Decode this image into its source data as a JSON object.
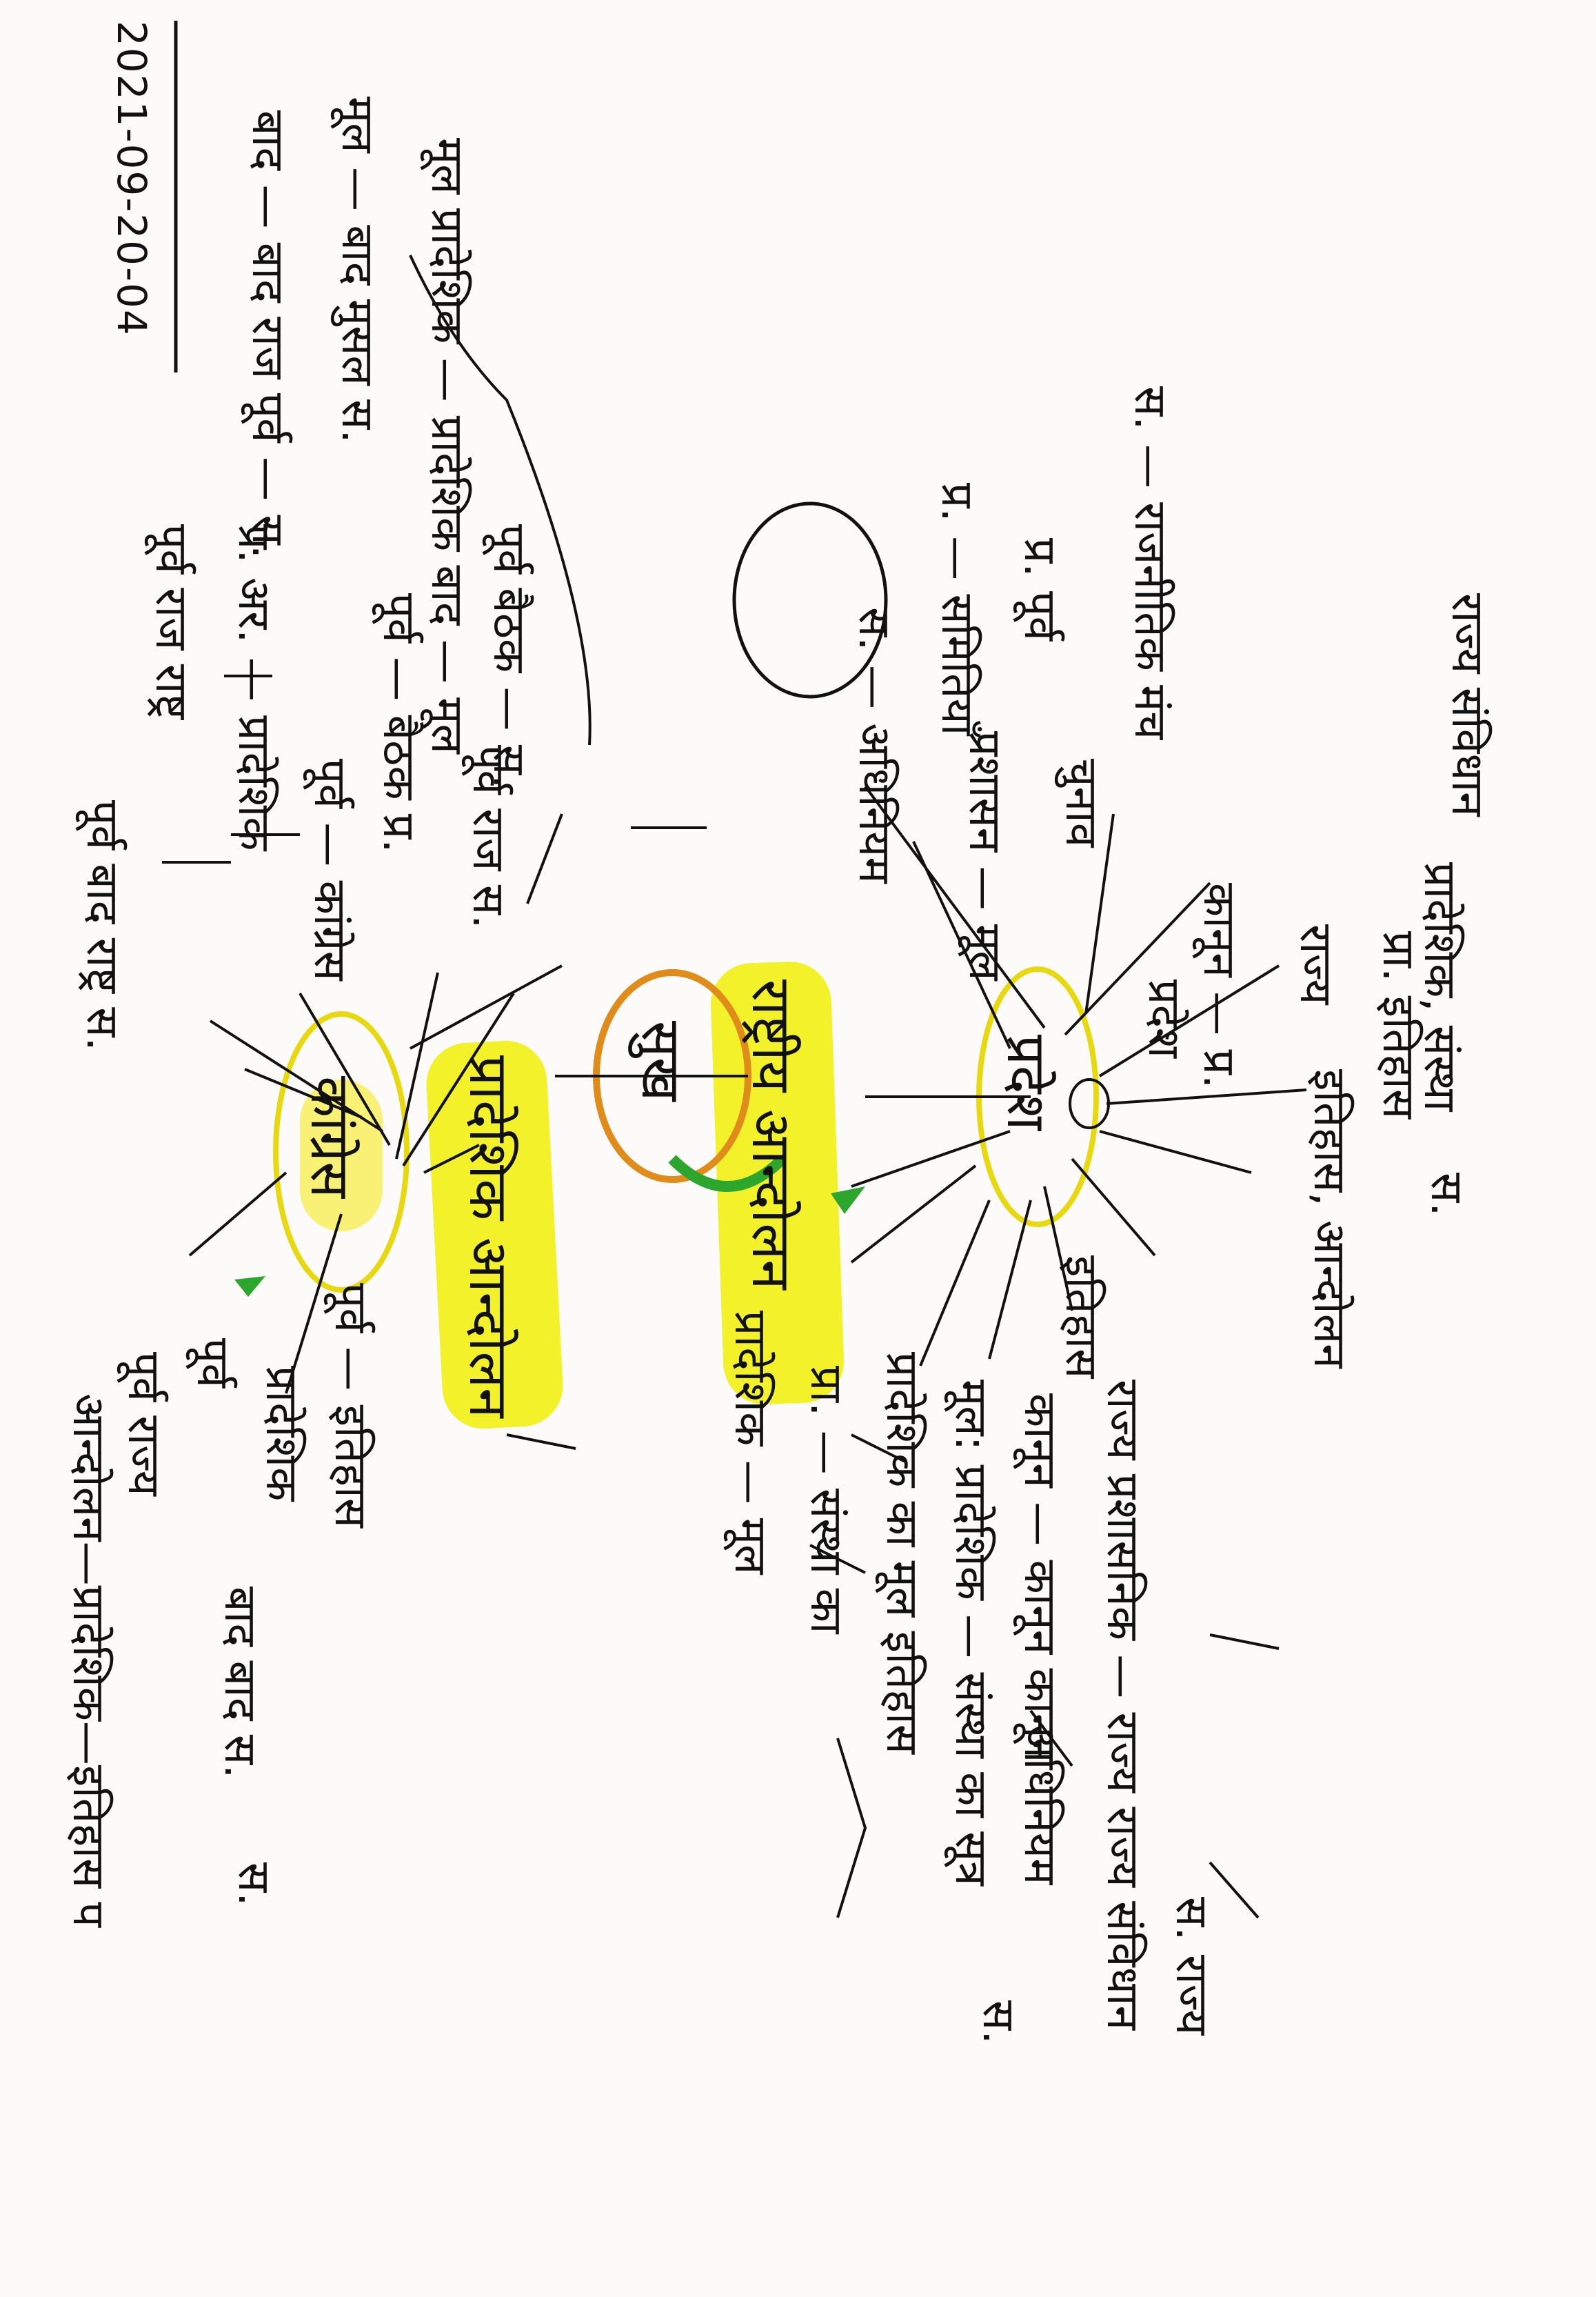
{
  "note": {
    "date": "2021-09-20-04",
    "center": {
      "main_node": "सुख",
      "left_hub": "राष्ट्रीय आन्दोलन",
      "right_hub": "प्रादेशिक आन्दोलन",
      "top_hub": "प्रदेश",
      "bottom_hub": "कांग्रेस"
    },
    "top_branch": [
      {
        "label": "पूर्व बाद राष्ट्र स."
      },
      {
        "label": "पूर्व राज राष्ट्र"
      },
      {
        "label": "प्र. अर. — प्रादेशिक"
      },
      {
        "label": "पूर्व — कांग्रेस"
      },
      {
        "label": "पूर्व — बैठक प्र."
      },
      {
        "label": "पूर्व राज स."
      },
      {
        "label": "बाद — बाद राज पूर्व — स."
      },
      {
        "label": "मूल — बाद मुसल स."
      },
      {
        "label": "मूल प्रादेशिक — प्रादेशिक बाद — मूल"
      },
      {
        "label": "पूर्व बैठक — स."
      }
    ],
    "left_branch": [
      {
        "label": "इतिहास"
      },
      {
        "label": "प्रदेश"
      },
      {
        "label": "स. — अधिनियम"
      },
      {
        "label": "चुनाव"
      },
      {
        "label": "कानून — प्र."
      },
      {
        "label": "प्रशासन — मूल"
      },
      {
        "label": "प्र. — समितियाँ"
      },
      {
        "label": "प्र. पूर्व"
      },
      {
        "label": "स. — राजनीतिक मंच"
      },
      {
        "label": "राज्य"
      },
      {
        "label": "राज्य संविधान"
      },
      {
        "label": "प्रादेशिक, संस्था"
      },
      {
        "label": "इतिहास, आन्दोलन"
      },
      {
        "label": "प्रा. इतिहास"
      },
      {
        "label": "स."
      }
    ],
    "right_branch": [
      {
        "label": "पूर्व राज्य"
      },
      {
        "label": "पूर्व"
      },
      {
        "label": "आन्दोलन—प्रादेशिक—इतिहास प"
      },
      {
        "label": "प्रादेशिक"
      },
      {
        "label": "पूर्व — इतिहास"
      },
      {
        "label": "बाद बाद स."
      },
      {
        "label": "स."
      }
    ],
    "bottom_branch": [
      {
        "label": "प्रादेशिक — मूल"
      },
      {
        "label": "प्रा. — संस्था का"
      },
      {
        "label": "प्रादेशिक का मूल इतिहास"
      },
      {
        "label": "मूल: प्रादेशिक — संस्था का सूत्र"
      },
      {
        "label": "कानून — कानून कानून"
      },
      {
        "label": "अधिनियम"
      },
      {
        "label": "राज्य प्रशासनिक — राज्य राज्य संविधान"
      },
      {
        "label": "स."
      },
      {
        "label": "स. राज्य"
      }
    ]
  }
}
